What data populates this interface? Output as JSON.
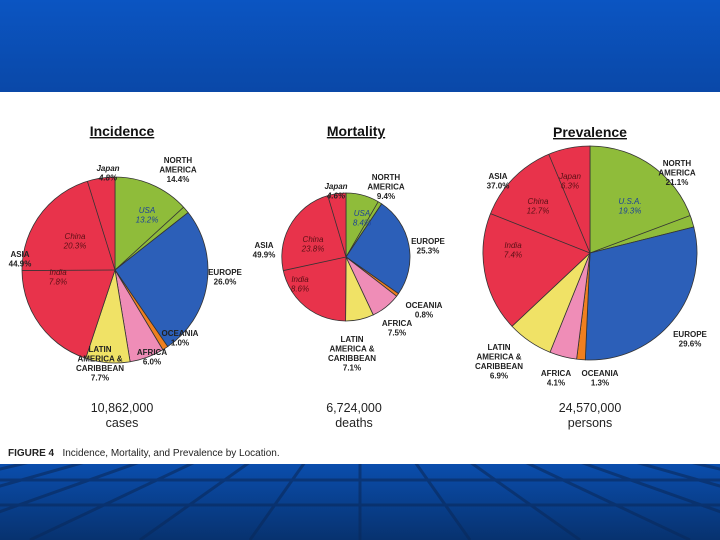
{
  "slide": {
    "colors": {
      "header_blue": "#0a4fb8",
      "floor_blue": "#063a88",
      "panel": "#ffffff"
    }
  },
  "figure": {
    "label": "FIGURE 4",
    "caption": "Incidence, Mortality, and Prevalence by Location."
  },
  "colors": {
    "asia": "#e8334b",
    "north_america": "#8fbc3a",
    "europe": "#2c5fb8",
    "oceania": "#f07f1f",
    "africa": "#ef8db7",
    "latin_america": "#f0e266"
  },
  "chart_data": [
    {
      "type": "pie",
      "title": "Incidence",
      "total_value": "10,862,000",
      "total_unit": "cases",
      "slices": [
        {
          "key": "north_america",
          "name": "NORTH AMERICA",
          "value": 14.4
        },
        {
          "key": "europe",
          "name": "EUROPE",
          "value": 26.0
        },
        {
          "key": "oceania",
          "name": "OCEANIA",
          "value": 1.0
        },
        {
          "key": "africa",
          "name": "AFRICA",
          "value": 6.0
        },
        {
          "key": "latin_america",
          "name": "LATIN AMERICA & CARIBBEAN",
          "value": 7.7
        },
        {
          "key": "asia",
          "name": "ASIA",
          "value": 44.9
        }
      ],
      "sub_slices": [
        {
          "parent": "asia",
          "name": "India",
          "value": 7.8
        },
        {
          "parent": "asia",
          "name": "China",
          "value": 20.3
        },
        {
          "parent": "asia",
          "name": "Japan",
          "value": 4.8
        },
        {
          "parent": "north_america",
          "name": "USA",
          "value": 13.2
        }
      ],
      "labels": [
        {
          "id": "na",
          "lines": [
            "NORTH",
            "AMERICA",
            "14.4%"
          ],
          "kind": "outside"
        },
        {
          "id": "eu",
          "lines": [
            "EUROPE",
            "26.0%"
          ],
          "kind": "outside"
        },
        {
          "id": "oc",
          "lines": [
            "OCEANIA",
            "1.0%"
          ],
          "kind": "outside"
        },
        {
          "id": "af",
          "lines": [
            "AFRICA",
            "6.0%"
          ],
          "kind": "outside"
        },
        {
          "id": "la",
          "lines": [
            "LATIN",
            "AMERICA &",
            "CARIBBEAN",
            "7.7%"
          ],
          "kind": "outside"
        },
        {
          "id": "as",
          "lines": [
            "ASIA",
            "44.9%"
          ],
          "kind": "outside"
        },
        {
          "id": "jp",
          "lines": [
            "Japan",
            "4.8%"
          ],
          "kind": "outside-italic"
        },
        {
          "id": "us",
          "lines": [
            "USA",
            "13.2%"
          ],
          "kind": "inside-blue"
        },
        {
          "id": "cn",
          "lines": [
            "China",
            "20.3%"
          ],
          "kind": "inside-dark"
        },
        {
          "id": "in",
          "lines": [
            "India",
            "7.8%"
          ],
          "kind": "inside-dark"
        }
      ]
    },
    {
      "type": "pie",
      "title": "Mortality",
      "total_value": "6,724,000",
      "total_unit": "deaths",
      "slices": [
        {
          "key": "north_america",
          "name": "NORTH AMERICA",
          "value": 9.4
        },
        {
          "key": "europe",
          "name": "EUROPE",
          "value": 25.3
        },
        {
          "key": "oceania",
          "name": "OCEANIA",
          "value": 0.8
        },
        {
          "key": "africa",
          "name": "AFRICA",
          "value": 7.5
        },
        {
          "key": "latin_america",
          "name": "LATIN AMERICA & CARIBBEAN",
          "value": 7.1
        },
        {
          "key": "asia",
          "name": "ASIA",
          "value": 49.9
        }
      ],
      "sub_slices": [
        {
          "parent": "asia",
          "name": "India",
          "value": 8.6
        },
        {
          "parent": "asia",
          "name": "China",
          "value": 23.8
        },
        {
          "parent": "asia",
          "name": "Japan",
          "value": 4.6
        },
        {
          "parent": "north_america",
          "name": "USA",
          "value": 8.4
        }
      ],
      "labels": [
        {
          "id": "na",
          "lines": [
            "NORTH",
            "AMERICA",
            "9.4%"
          ],
          "kind": "outside"
        },
        {
          "id": "eu",
          "lines": [
            "EUROPE",
            "25.3%"
          ],
          "kind": "outside"
        },
        {
          "id": "oc",
          "lines": [
            "OCEANIA",
            "0.8%"
          ],
          "kind": "outside"
        },
        {
          "id": "af",
          "lines": [
            "AFRICA",
            "7.5%"
          ],
          "kind": "outside"
        },
        {
          "id": "la",
          "lines": [
            "LATIN",
            "AMERICA &",
            "CARIBBEAN",
            "7.1%"
          ],
          "kind": "outside"
        },
        {
          "id": "as",
          "lines": [
            "ASIA",
            "49.9%"
          ],
          "kind": "outside"
        },
        {
          "id": "jp",
          "lines": [
            "Japan",
            "4.6%"
          ],
          "kind": "outside-italic"
        },
        {
          "id": "us",
          "lines": [
            "USA",
            "8.4%"
          ],
          "kind": "inside-blue"
        },
        {
          "id": "cn",
          "lines": [
            "China",
            "23.8%"
          ],
          "kind": "inside-dark"
        },
        {
          "id": "in",
          "lines": [
            "India",
            "8.6%"
          ],
          "kind": "inside-dark"
        }
      ]
    },
    {
      "type": "pie",
      "title": "Prevalence",
      "total_value": "24,570,000",
      "total_unit": "persons",
      "slices": [
        {
          "key": "north_america",
          "name": "NORTH AMERICA",
          "value": 21.1
        },
        {
          "key": "europe",
          "name": "EUROPE",
          "value": 29.6
        },
        {
          "key": "oceania",
          "name": "OCEANIA",
          "value": 1.3
        },
        {
          "key": "africa",
          "name": "AFRICA",
          "value": 4.1
        },
        {
          "key": "latin_america",
          "name": "LATIN AMERICA & CARIBBEAN",
          "value": 6.9
        },
        {
          "key": "asia",
          "name": "ASIA",
          "value": 37.0
        }
      ],
      "sub_slices": [
        {
          "parent": "asia",
          "name": "India",
          "value": 7.4
        },
        {
          "parent": "asia",
          "name": "China",
          "value": 12.7
        },
        {
          "parent": "asia",
          "name": "Japan",
          "value": 6.3
        },
        {
          "parent": "north_america",
          "name": "U.S.A.",
          "value": 19.3
        }
      ],
      "labels": [
        {
          "id": "na",
          "lines": [
            "NORTH",
            "AMERICA",
            "21.1%"
          ],
          "kind": "outside"
        },
        {
          "id": "eu",
          "lines": [
            "EUROPE",
            "29.6%"
          ],
          "kind": "outside"
        },
        {
          "id": "oc",
          "lines": [
            "OCEANIA",
            "1.3%"
          ],
          "kind": "outside"
        },
        {
          "id": "af",
          "lines": [
            "AFRICA",
            "4.1%"
          ],
          "kind": "outside"
        },
        {
          "id": "la",
          "lines": [
            "LATIN",
            "AMERICA &",
            "CARIBBEAN",
            "6.9%"
          ],
          "kind": "outside"
        },
        {
          "id": "as",
          "lines": [
            "ASIA",
            "37.0%"
          ],
          "kind": "outside"
        },
        {
          "id": "jp",
          "lines": [
            "Japan",
            "6.3%"
          ],
          "kind": "inside-dark"
        },
        {
          "id": "us",
          "lines": [
            "U.S.A.",
            "19.3%"
          ],
          "kind": "inside-blue"
        },
        {
          "id": "cn",
          "lines": [
            "China",
            "12.7%"
          ],
          "kind": "inside-dark"
        },
        {
          "id": "in",
          "lines": [
            "India",
            "7.4%"
          ],
          "kind": "inside-dark"
        }
      ]
    }
  ]
}
